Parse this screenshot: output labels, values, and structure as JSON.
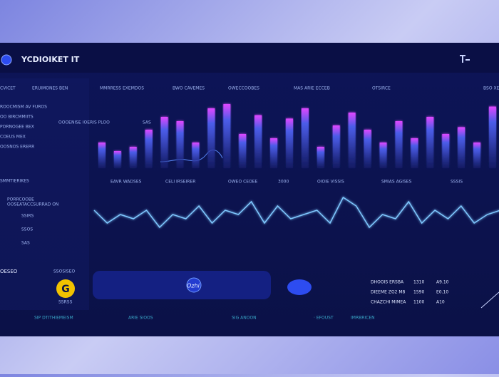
{
  "header": {
    "title": "YCDIOIKET IT"
  },
  "columns": [
    "CVICET",
    "ERUIMONES BEN",
    "MMRRESS EXEMDOS",
    "BWO CAVEMES",
    "OWECCOOBES",
    "MAS ARIE ECCEB",
    "OTSIRCE",
    "BSO XE"
  ],
  "sidebar": {
    "items": [
      "ROOCMISM AV FUROS",
      "OO BIRCMMIITS",
      "PORNOGEE BEX",
      "COEUS MEX",
      "OOSNOS ERERR"
    ],
    "section": "SMMTIERIKES",
    "sub": [
      "PORRCOOBE",
      "OOSEATACCSURRAD ON"
    ],
    "stats": [
      "SSIRS",
      "SSOS",
      "SAS"
    ]
  },
  "bar_panel": {
    "label": "OOOENISE IOERIS PLOO",
    "tag": "SAS",
    "bars": [
      30,
      20,
      25,
      45,
      60,
      55,
      30,
      70,
      75,
      40,
      62,
      35,
      58,
      70,
      25,
      50,
      65,
      45,
      30,
      55,
      35,
      60,
      40,
      48,
      30,
      72
    ]
  },
  "mid_labels": [
    "EAVR WADSES",
    "CELI IRSEIRER",
    "OWEO CEOEE",
    "3000",
    "OIOIE VISSIS",
    "SMIAS AGISES",
    "SSSIS"
  ],
  "wave": {
    "values": [
      5,
      2,
      4,
      3,
      5,
      1,
      4,
      3,
      6,
      2,
      5,
      4,
      7,
      2,
      6,
      3,
      4,
      5,
      2,
      8,
      6,
      1,
      4,
      3,
      7,
      2,
      5,
      3,
      6,
      2,
      4,
      5
    ]
  },
  "bottom": {
    "left_title": "OESEO",
    "left_sub": "SSOSISEO",
    "logo": "G",
    "logo_caption": "SSRSS",
    "slider": "Ozhi",
    "rows": [
      [
        "DHOOIS ERSBA",
        "1310",
        "A9.10"
      ],
      [
        "DIEEME ZG2 M8",
        "1590",
        "E0.10"
      ],
      [
        "CHAZCHI MIMEA",
        "1100",
        "A10"
      ]
    ]
  },
  "footer": [
    "SIP DTITHIEMEISM",
    "ARIE SIOOS",
    "SIG ANOON",
    "· EFOUST",
    "IMRBRICEN"
  ]
}
